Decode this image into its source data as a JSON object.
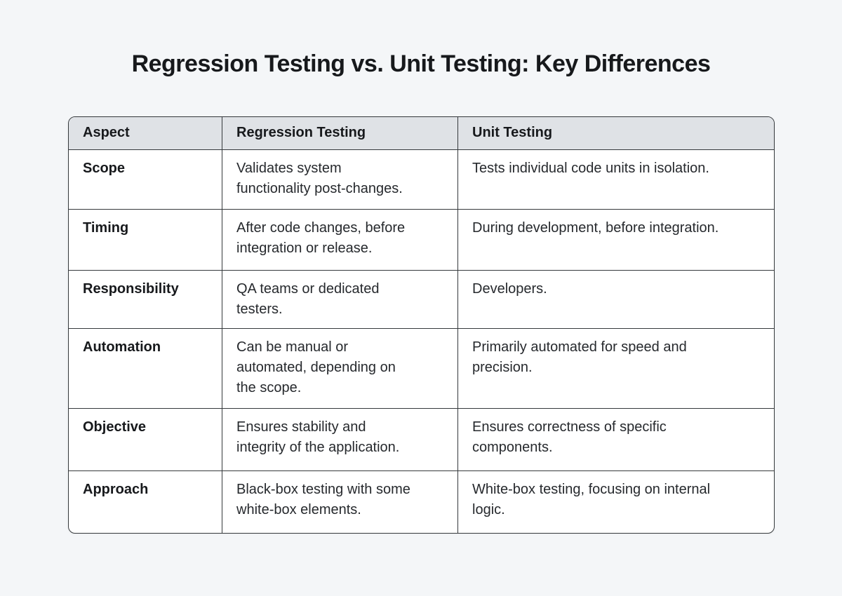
{
  "title": "Regression Testing vs. Unit Testing: Key Differences",
  "colors": {
    "page_bg": "#f4f6f8",
    "header_bg": "#dfe2e6",
    "border": "#35393c",
    "body_text": "#26292d",
    "title_text": "#17191c"
  },
  "table": {
    "headers": [
      "Aspect",
      "Regression Testing",
      "Unit Testing"
    ],
    "rows": [
      {
        "aspect": "Scope",
        "regression": "Validates system\nfunctionality post-changes.",
        "unit": "Tests individual code units in isolation."
      },
      {
        "aspect": "Timing",
        "regression": "After code changes, before\nintegration or release.",
        "unit": "During development, before integration."
      },
      {
        "aspect": "Responsibility",
        "regression": "QA teams or dedicated\ntesters.",
        "unit": "Developers."
      },
      {
        "aspect": "Automation",
        "regression": "Can be manual or\nautomated, depending on\nthe scope.",
        "unit": "Primarily automated for speed and\nprecision."
      },
      {
        "aspect": "Objective",
        "regression": "Ensures stability and\nintegrity of the application.",
        "unit": "Ensures correctness of specific\ncomponents."
      },
      {
        "aspect": "Approach",
        "regression": "Black-box testing with some\nwhite-box elements.",
        "unit": "White-box testing, focusing on internal\nlogic."
      }
    ]
  }
}
